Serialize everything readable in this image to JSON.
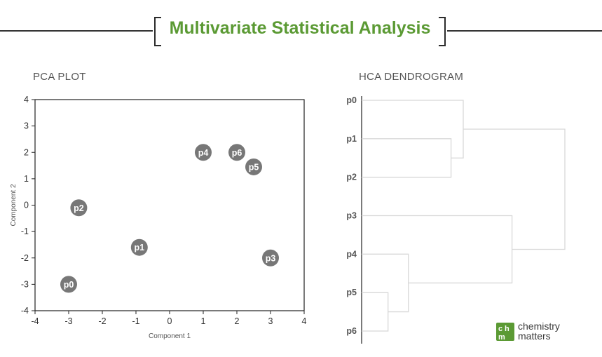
{
  "title": "Multivariate Statistical Analysis",
  "pca": {
    "title": "PCA PLOT",
    "chart_data": {
      "type": "scatter",
      "xlabel": "Component 1",
      "ylabel": "Component 2",
      "xlim": [
        -4,
        4
      ],
      "ylim": [
        -4,
        4
      ],
      "xticks": [
        -4,
        -3,
        -2,
        -1,
        0,
        1,
        2,
        3,
        4
      ],
      "yticks": [
        4,
        3,
        2,
        1,
        0,
        -1,
        -2,
        -3,
        -4
      ],
      "points": [
        {
          "label": "p0",
          "x": -3.0,
          "y": -3.0
        },
        {
          "label": "p1",
          "x": -0.9,
          "y": -1.6
        },
        {
          "label": "p2",
          "x": -2.7,
          "y": -0.1
        },
        {
          "label": "p3",
          "x": 3.0,
          "y": -2.0
        },
        {
          "label": "p4",
          "x": 1.0,
          "y": 2.0
        },
        {
          "label": "p5",
          "x": 2.5,
          "y": 1.45
        },
        {
          "label": "p6",
          "x": 2.0,
          "y": 2.0
        }
      ],
      "point_color": "#777777"
    }
  },
  "hca": {
    "title": "HCA DENDROGRAM",
    "chart_data": {
      "type": "dendrogram",
      "leaves": [
        "p0",
        "p1",
        "p2",
        "p3",
        "p4",
        "p5",
        "p6"
      ],
      "merges": [
        {
          "left": "p5",
          "right": "p6",
          "height": 0.13
        },
        {
          "left": "p4",
          "right": "p5+p6",
          "height": 0.23
        },
        {
          "left": "p1",
          "right": "p2",
          "height": 0.44
        },
        {
          "left": "p0",
          "right": "p1+p2",
          "height": 0.5
        },
        {
          "left": "p3",
          "right": "p4+p5+p6",
          "height": 0.74
        },
        {
          "left": "p0+p1+p2",
          "right": "p3+p4+p5+p6",
          "height": 1.0
        }
      ],
      "line_color": "#d8d8d8"
    }
  },
  "logo": {
    "line1": "chemistry",
    "line2": "matters",
    "accent": "#5b9a34"
  }
}
